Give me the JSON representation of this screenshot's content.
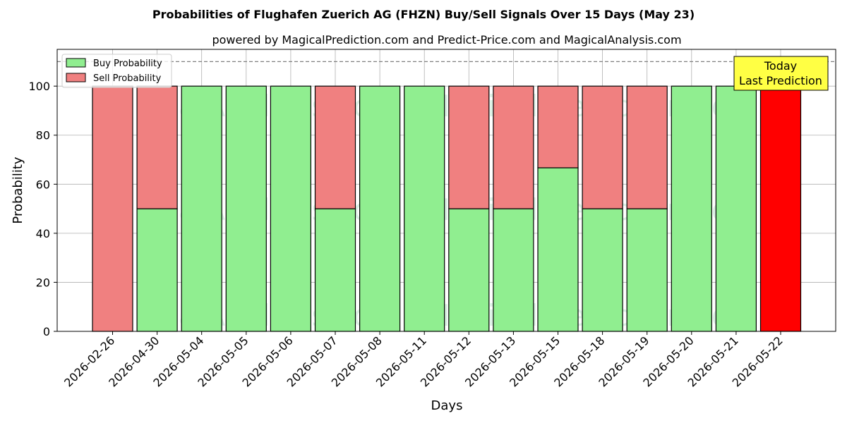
{
  "chart_data": {
    "type": "bar",
    "stacked": true,
    "title": "Probabilities of Flughafen Zuerich AG (FHZN) Buy/Sell Signals Over 15 Days (May 23)",
    "subtitle": "powered by MagicalPrediction.com and Predict-Price.com and MagicalAnalysis.com",
    "xlabel": "Days",
    "ylabel": "Probability",
    "ylim": [
      0,
      115
    ],
    "yticks": [
      0,
      20,
      40,
      60,
      80,
      100
    ],
    "ytick_labels": [
      "0",
      "20",
      "40",
      "60",
      "80",
      "100"
    ],
    "reference_line": 110,
    "grid": true,
    "legend_position": "top-left",
    "categories": [
      "2026-02-26",
      "2026-04-30",
      "2026-05-04",
      "2026-05-05",
      "2026-05-06",
      "2026-05-07",
      "2026-05-08",
      "2026-05-11",
      "2026-05-12",
      "2026-05-13",
      "2026-05-15",
      "2026-05-18",
      "2026-05-19",
      "2026-05-20",
      "2026-05-21",
      "2026-05-22"
    ],
    "series": [
      {
        "name": "Buy Probability",
        "color": "#90ee90",
        "values": [
          0,
          50,
          100,
          100,
          100,
          50,
          100,
          100,
          50,
          50,
          66.7,
          50,
          50,
          100,
          100,
          0
        ]
      },
      {
        "name": "Sell Probability",
        "color": "#f08080",
        "values": [
          100,
          50,
          0,
          0,
          0,
          50,
          0,
          0,
          50,
          50,
          33.3,
          50,
          50,
          0,
          0,
          100
        ]
      }
    ],
    "highlight": {
      "category": "2026-05-22",
      "color": "#ff0000"
    },
    "annotation": {
      "line1": "Today",
      "line2": "Last Prediction",
      "color": "#ffff44"
    },
    "watermarks": [
      "MagicalAnalysis.com",
      "MagicalPrediction.com"
    ]
  }
}
